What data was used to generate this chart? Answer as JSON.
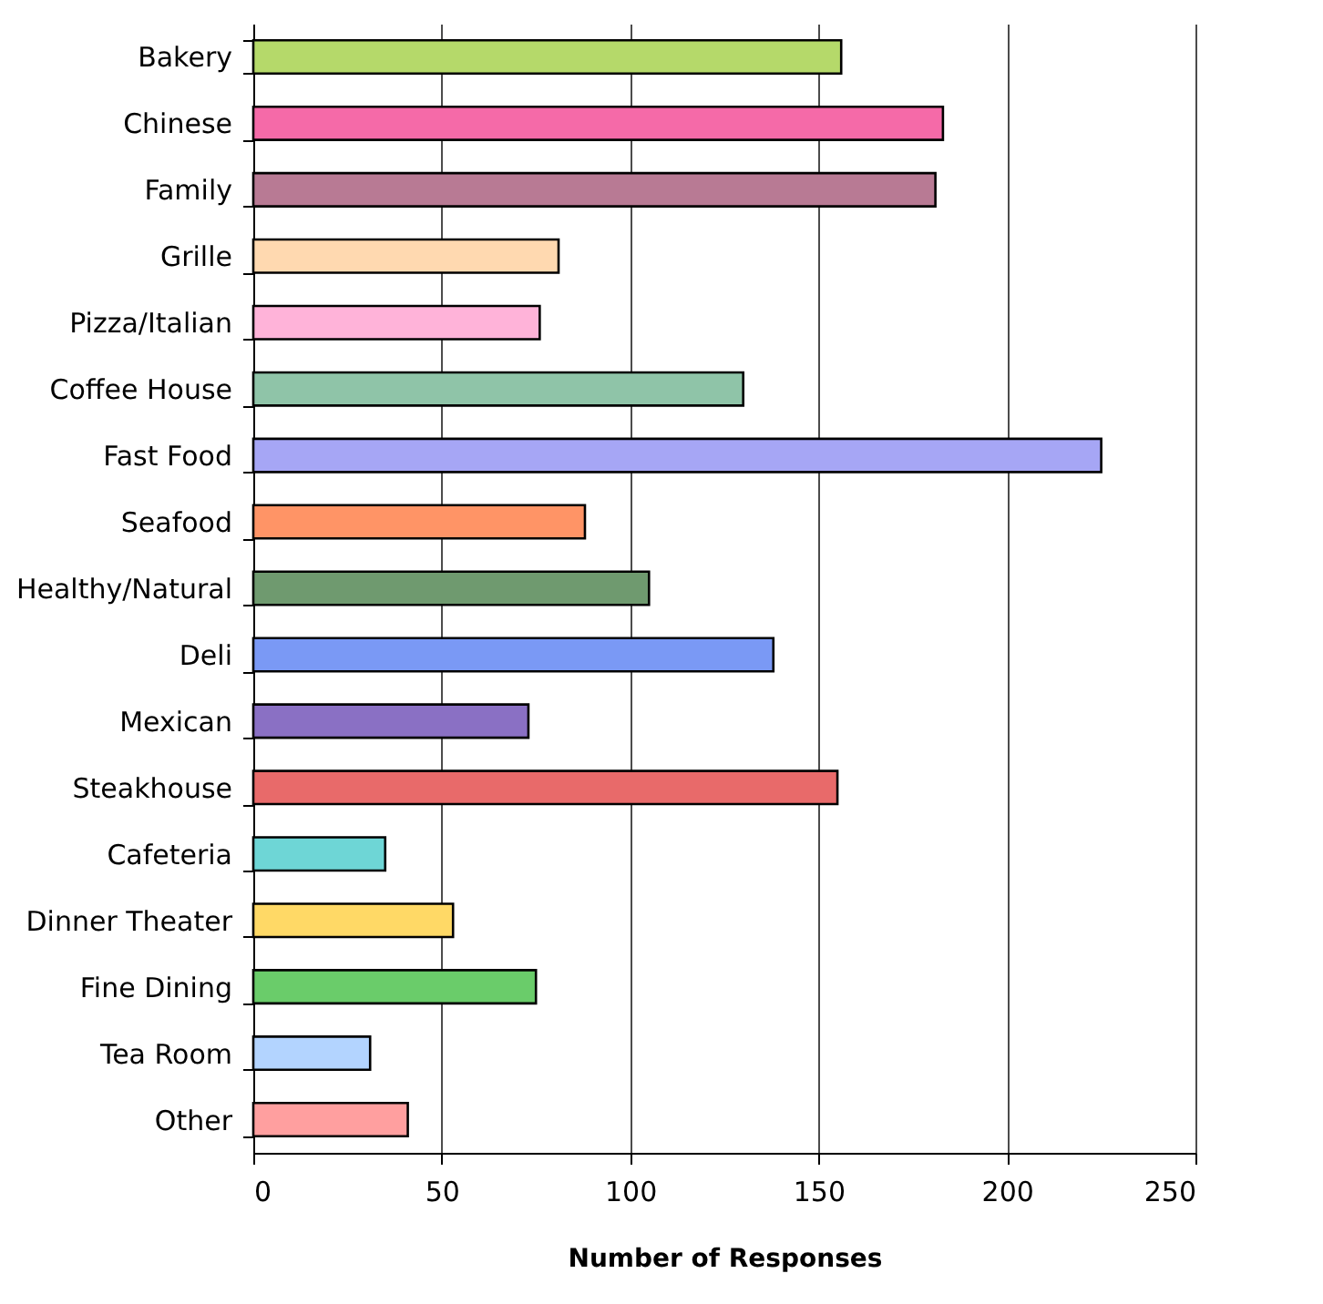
{
  "chart_data": {
    "type": "bar",
    "orientation": "horizontal",
    "xlabel": "Number of Responses",
    "categories": [
      "Bakery",
      "Chinese",
      "Family",
      "Grille",
      "Pizza/Italian",
      "Coffee House",
      "Fast Food",
      "Seafood",
      "Healthy/Natural",
      "Deli",
      "Mexican",
      "Steakhouse",
      "Cafeteria",
      "Dinner Theater",
      "Fine Dining",
      "Tea Room",
      "Other"
    ],
    "values": [
      156,
      183,
      181,
      81,
      76,
      130,
      225,
      88,
      105,
      138,
      73,
      155,
      35,
      53,
      75,
      31,
      41
    ],
    "colors": [
      "#b5d96a",
      "#f56aa8",
      "#b87a94",
      "#ffd9b0",
      "#ffb3d9",
      "#8fc4a8",
      "#a6a6f5",
      "#ff9466",
      "#6f9a6f",
      "#7a99f5",
      "#8a70c4",
      "#e86a6a",
      "#6ed6d6",
      "#ffd966",
      "#6acc6a",
      "#b3d4ff",
      "#ff9f9f"
    ],
    "xlim": [
      0,
      250
    ],
    "xticks": [
      0,
      50,
      100,
      150,
      200,
      250
    ],
    "grid": "x"
  }
}
